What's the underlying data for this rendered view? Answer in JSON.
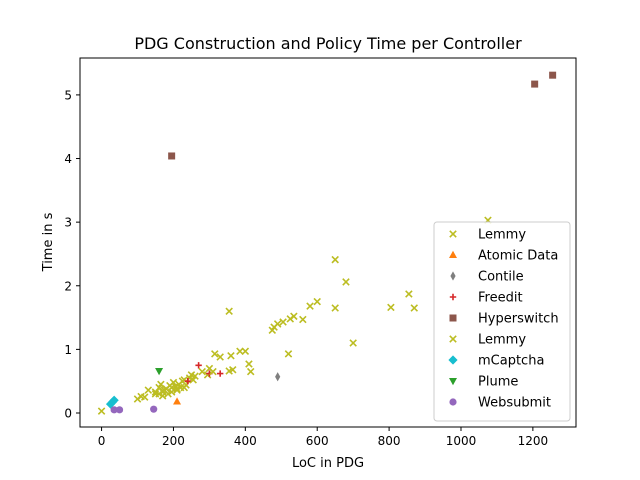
{
  "chart_data": {
    "type": "scatter",
    "title": "PDG Construction and Policy Time per Controller",
    "xlabel": "LoC in PDG",
    "ylabel": "Time in s",
    "xlim": [
      -60,
      1320
    ],
    "ylim": [
      -0.22,
      5.58
    ],
    "xticks": [
      0,
      200,
      400,
      600,
      800,
      1000,
      1200
    ],
    "yticks": [
      0,
      1,
      2,
      3,
      4,
      5
    ],
    "grid": false,
    "legend_position": "lower-right",
    "series": [
      {
        "name": "Lemmy",
        "color": "#bcbd22",
        "marker": "x",
        "points": [
          [
            0,
            0.03
          ],
          [
            100,
            0.22
          ],
          [
            110,
            0.26
          ],
          [
            130,
            0.36
          ],
          [
            150,
            0.33
          ],
          [
            160,
            0.3
          ],
          [
            160,
            0.4
          ],
          [
            165,
            0.45
          ],
          [
            170,
            0.27
          ],
          [
            170,
            0.33
          ],
          [
            175,
            0.36
          ],
          [
            180,
            0.38
          ],
          [
            185,
            0.3
          ],
          [
            190,
            0.43
          ],
          [
            195,
            0.4
          ],
          [
            200,
            0.48
          ],
          [
            205,
            0.42
          ],
          [
            210,
            0.36
          ],
          [
            215,
            0.45
          ],
          [
            220,
            0.4
          ],
          [
            225,
            0.5
          ],
          [
            230,
            0.52
          ],
          [
            235,
            0.44
          ],
          [
            245,
            0.55
          ],
          [
            250,
            0.6
          ],
          [
            260,
            0.58
          ],
          [
            280,
            0.65
          ],
          [
            295,
            0.6
          ],
          [
            300,
            0.7
          ],
          [
            315,
            0.93
          ],
          [
            330,
            0.88
          ],
          [
            355,
            0.66
          ],
          [
            355,
            1.6
          ],
          [
            360,
            0.9
          ],
          [
            385,
            0.97
          ],
          [
            400,
            0.97
          ],
          [
            410,
            0.77
          ],
          [
            415,
            0.65
          ],
          [
            475,
            1.3
          ],
          [
            480,
            1.35
          ],
          [
            490,
            1.4
          ],
          [
            505,
            1.43
          ],
          [
            520,
            0.93
          ],
          [
            525,
            1.48
          ],
          [
            535,
            1.52
          ],
          [
            560,
            1.47
          ],
          [
            580,
            1.68
          ],
          [
            600,
            1.75
          ],
          [
            650,
            1.65
          ],
          [
            650,
            2.41
          ],
          [
            680,
            2.06
          ],
          [
            700,
            1.1
          ],
          [
            805,
            1.66
          ],
          [
            855,
            1.87
          ],
          [
            870,
            1.65
          ],
          [
            1075,
            3.03
          ]
        ]
      },
      {
        "name": "Atomic Data",
        "color": "#ff7f0e",
        "marker": "triangle-up",
        "points": [
          [
            210,
            0.18
          ]
        ]
      },
      {
        "name": "Contile",
        "color": "#7f7f7f",
        "marker": "thin-diamond",
        "points": [
          [
            490,
            0.57
          ]
        ]
      },
      {
        "name": "Freedit",
        "color": "#d62728",
        "marker": "plus",
        "points": [
          [
            240,
            0.5
          ],
          [
            270,
            0.75
          ],
          [
            300,
            0.62
          ],
          [
            330,
            0.62
          ]
        ]
      },
      {
        "name": "Hyperswitch",
        "color": "#8c564b",
        "marker": "square",
        "points": [
          [
            195,
            4.04
          ],
          [
            1205,
            5.17
          ],
          [
            1255,
            5.31
          ]
        ]
      },
      {
        "name": "Lemmy",
        "color": "#bcbd22",
        "marker": "x",
        "points": [
          [
            120,
            0.25
          ],
          [
            150,
            0.3
          ],
          [
            170,
            0.35
          ],
          [
            195,
            0.33
          ],
          [
            210,
            0.38
          ],
          [
            230,
            0.4
          ],
          [
            255,
            0.52
          ],
          [
            310,
            0.65
          ],
          [
            365,
            0.68
          ]
        ]
      },
      {
        "name": "mCaptcha",
        "color": "#17becf",
        "marker": "diamond",
        "points": [
          [
            25,
            0.14
          ],
          [
            30,
            0.17
          ],
          [
            35,
            0.2
          ]
        ]
      },
      {
        "name": "Plume",
        "color": "#2ca02c",
        "marker": "triangle-down",
        "points": [
          [
            160,
            0.66
          ]
        ]
      },
      {
        "name": "Websubmit",
        "color": "#9467bd",
        "marker": "circle",
        "points": [
          [
            35,
            0.05
          ],
          [
            50,
            0.05
          ],
          [
            145,
            0.06
          ]
        ]
      }
    ]
  }
}
